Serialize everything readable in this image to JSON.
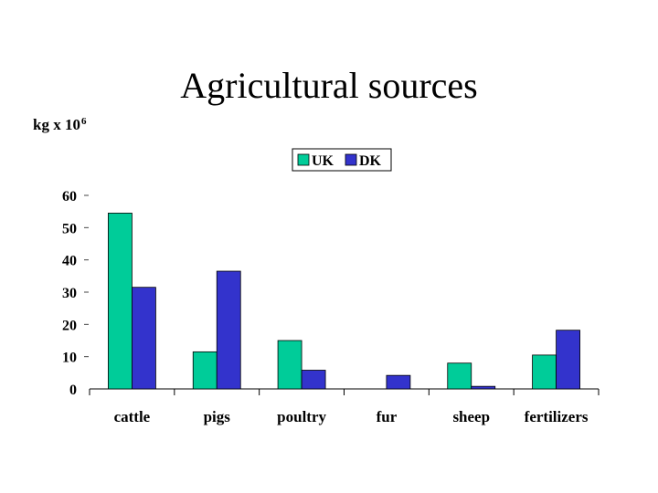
{
  "chart_data": {
    "type": "bar",
    "title": "Agricultural sources",
    "unit_label": {
      "base": "kg x 10",
      "exponent": "6"
    },
    "categories": [
      "cattle",
      "pigs",
      "poultry",
      "fur",
      "sheep",
      "fertilizers"
    ],
    "series": [
      {
        "name": "UK",
        "color": "#00cc99",
        "values": [
          54.5,
          11.5,
          15,
          0,
          8,
          10.5
        ]
      },
      {
        "name": "DK",
        "color": "#3333cc",
        "values": [
          31.5,
          36.5,
          5.8,
          4.2,
          0.8,
          18.2
        ]
      }
    ],
    "ylim": [
      0,
      60
    ],
    "yticks": [
      0,
      10,
      20,
      30,
      40,
      50,
      60
    ],
    "grid": false,
    "legend": "top-center"
  }
}
